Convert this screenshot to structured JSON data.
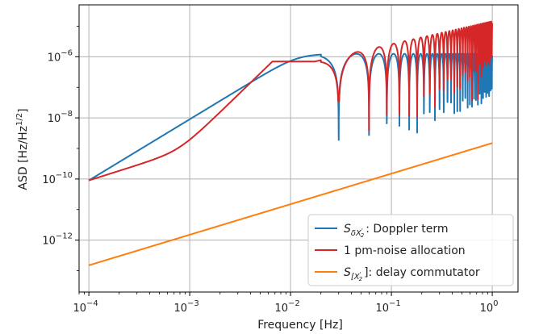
{
  "chart_data": {
    "type": "line",
    "xscale": "log",
    "yscale": "log",
    "xlabel": "Frequency [Hz]",
    "ylabel": "ASD [Hz/Hz^1/2]",
    "xlim": [
      8e-05,
      1.8
    ],
    "ylim": [
      2e-14,
      5e-05
    ],
    "xticks": [
      0.0001,
      0.001,
      0.01,
      0.1,
      1
    ],
    "xtick_labels": [
      {
        "base": "10",
        "exp": "−4"
      },
      {
        "base": "10",
        "exp": "−3"
      },
      {
        "base": "10",
        "exp": "−2"
      },
      {
        "base": "10",
        "exp": "−1"
      },
      {
        "base": "10",
        "exp": "0"
      }
    ],
    "yticks": [
      1e-12,
      1e-10,
      1e-08,
      1e-06
    ],
    "ytick_labels": [
      {
        "base": "10",
        "exp": "−12"
      },
      {
        "base": "10",
        "exp": "−10"
      },
      {
        "base": "10",
        "exp": "−8"
      },
      {
        "base": "10",
        "exp": "−6"
      }
    ],
    "grid": true,
    "legend_position": "lower-right",
    "series": [
      {
        "name": "S_δX'2: Doppler term",
        "color": "#1f77b4",
        "model": "doppler",
        "x": [
          0.0001,
          0.001,
          0.01,
          0.0175,
          0.03,
          0.06,
          0.09,
          0.12,
          0.18,
          1.0
        ],
        "y": [
          9e-11,
          9e-09,
          6.8e-07,
          1.25e-06,
          0.0,
          1e-10,
          1e-10,
          1e-13,
          1e-13,
          1.25e-06
        ]
      },
      {
        "name": "1 pm-noise allocation",
        "color": "#d62728",
        "model": "allocation",
        "x": [
          0.0001,
          0.001,
          0.002,
          0.01,
          0.018,
          0.03,
          0.06,
          0.1,
          1.0
        ],
        "y": [
          9e-11,
          1e-09,
          1.8e-09,
          1.4e-07,
          6.5e-07,
          3.5e-08,
          1.7e-09,
          1.6e-06,
          6e-06
        ]
      },
      {
        "name": "S_[X'2]: delay commutator",
        "color": "#ff7f0e",
        "model": "linear",
        "x": [
          0.0001,
          1.0
        ],
        "y": [
          1.5e-13,
          1.5e-09
        ]
      }
    ]
  },
  "legend": {
    "entries": [
      {
        "color": "#1f77b4",
        "prefix": "S",
        "sub_main": "δX",
        "sub_sub": "2",
        "sub_sup": "'",
        "suffix": ": Doppler term"
      },
      {
        "color": "#d62728",
        "prefix": "",
        "sub_main": "",
        "sub_sub": "",
        "sub_sup": "",
        "suffix": "1 pm-noise allocation"
      },
      {
        "color": "#ff7f0e",
        "prefix": "S",
        "sub_main": "[X",
        "sub_sub": "2",
        "sub_sup": "'",
        "suffix": "]: delay commutator"
      }
    ]
  },
  "labels": {
    "xlabel": "Frequency [Hz]",
    "ylabel_main": "ASD [Hz/Hz",
    "ylabel_sup": "1/2",
    "ylabel_end": "]"
  }
}
